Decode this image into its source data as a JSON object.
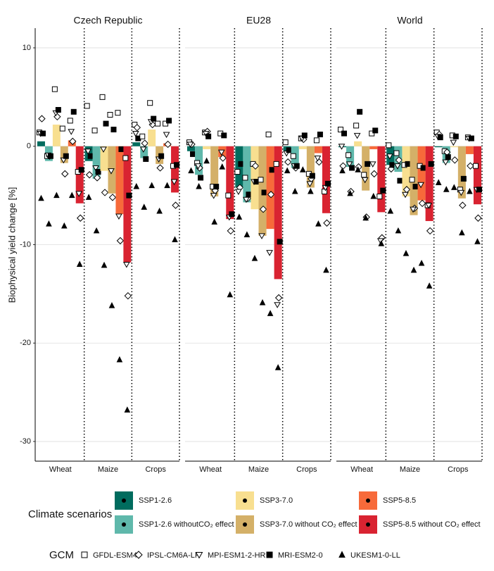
{
  "chart_data": {
    "type": "bar",
    "ylabel": "Biophysical yield change [%]",
    "ylim": [
      -32,
      12
    ],
    "yticks": [
      10,
      0,
      -10,
      -20,
      -30
    ],
    "grid": true,
    "scenario_title": "Climate scenarios",
    "scenarios": [
      {
        "name": "SSP1-2.6",
        "color": "#006c5e"
      },
      {
        "name": "SSP1-2.6 withoutCO₂ effect",
        "color": "#5fb8ab"
      },
      {
        "name": "SSP3-7.0",
        "color": "#f8df90"
      },
      {
        "name": "SSP3-7.0 without CO₂ effect",
        "color": "#d4b068"
      },
      {
        "name": "SSP5-8.5",
        "color": "#f76a3a"
      },
      {
        "name": "SSP5-8.5 without CO₂ effect",
        "color": "#d92331"
      }
    ],
    "gcm_title": "GCM",
    "gcms": [
      {
        "name": "GFDL-ESM4",
        "marker": "square-open"
      },
      {
        "name": "IPSL-CM6A-LR",
        "marker": "diamond-open"
      },
      {
        "name": "MPI-ESM1-2-HR",
        "marker": "triangle-down-open"
      },
      {
        "name": "MRI-ESM2-0",
        "marker": "square"
      },
      {
        "name": "UKESM1-0-LL",
        "marker": "triangle"
      }
    ],
    "panels": [
      {
        "title": "Czech Republic",
        "categories": [
          "Wheat",
          "Maize",
          "Crops"
        ],
        "values": [
          [
            0.5,
            -1.5,
            2.2,
            -1.7,
            0.6,
            -5.8
          ],
          [
            -1.5,
            -3.3,
            -2.5,
            -4.8,
            -6.9,
            -11.8
          ],
          [
            0.4,
            -1.2,
            1.7,
            -1.8,
            0.3,
            -4.7
          ]
        ],
        "points": [
          [
            [
              1.4,
              2.8,
              1.3,
              1.3,
              -5.3
            ],
            [
              -1.0,
              -1.0,
              -0.9,
              -1.0,
              -7.9
            ],
            [
              5.8,
              3.0,
              3.4,
              3.7,
              -5.0
            ],
            [
              1.8,
              -2.8,
              -1.4,
              -1.0,
              -8.1
            ],
            [
              2.6,
              0.5,
              1.5,
              3.5,
              -5.0
            ],
            [
              -2.6,
              -7.3,
              -4.8,
              -2.4,
              -12.0
            ]
          ],
          [
            [
              4.1,
              -2.9,
              -0.5,
              -1.0,
              -5.2
            ],
            [
              1.6,
              -3.2,
              -2.2,
              -2.6,
              -8.6
            ],
            [
              5.0,
              -4.7,
              -0.3,
              2.3,
              -12.1
            ],
            [
              3.2,
              -5.2,
              -2.5,
              1.7,
              -16.2
            ],
            [
              3.4,
              -9.6,
              -7.1,
              -0.3,
              -21.7
            ],
            [
              -1.2,
              -15.2,
              -12.0,
              -5.0,
              -26.8
            ]
          ],
          [
            [
              2.2,
              1.9,
              1.3,
              0.8,
              -4.1
            ],
            [
              1.0,
              0.3,
              -0.3,
              -1.3,
              -6.2
            ],
            [
              4.4,
              2.2,
              2.5,
              2.8,
              -4.0
            ],
            [
              2.3,
              -2.2,
              -1.3,
              -1.0,
              -6.6
            ],
            [
              2.3,
              0.2,
              1.2,
              2.6,
              -4.0
            ],
            [
              -2.0,
              -6.0,
              -3.6,
              -1.9,
              -9.5
            ]
          ]
        ]
      },
      {
        "title": "EU28",
        "categories": [
          "Wheat",
          "Maize",
          "Crops"
        ],
        "values": [
          [
            -0.5,
            -2.9,
            -0.3,
            -5.1,
            -1.1,
            -7.4
          ],
          [
            -4.2,
            -5.7,
            -6.4,
            -9.1,
            -8.4,
            -13.5
          ],
          [
            -0.5,
            -2.2,
            -0.3,
            -4.2,
            -0.7,
            -6.8
          ]
        ],
        "points": [
          [
            [
              0.4,
              0.2,
              0.2,
              -0.8,
              -2.5
            ],
            [
              -1.7,
              -2.2,
              -2.0,
              -3.2,
              -4.1
            ],
            [
              1.4,
              1.5,
              1.3,
              1.0,
              -1.5
            ],
            [
              -4.1,
              -4.5,
              -5.0,
              -4.1,
              -7.7
            ],
            [
              1.3,
              -1.2,
              -0.6,
              1.1,
              -2.1
            ],
            [
              -5.0,
              -8.6,
              -7.2,
              -6.9,
              -15.1
            ]
          ],
          [
            [
              -2.6,
              -4.2,
              -4.6,
              -1.8,
              -7.2
            ],
            [
              -3.2,
              -5.3,
              -5.4,
              -4.9,
              -9.0
            ],
            [
              -1.8,
              -2.0,
              -3.6,
              -3.6,
              -11.4
            ],
            [
              -3.4,
              -6.4,
              -9.1,
              -4.7,
              -15.9
            ],
            [
              1.2,
              -4.9,
              -10.8,
              -2.4,
              -17.0
            ],
            [
              -1.8,
              -15.4,
              -16.1,
              -9.7,
              -22.5
            ]
          ],
          [
            [
              0.4,
              -1.6,
              -0.7,
              -0.4,
              -2.5
            ],
            [
              -1.0,
              -2.2,
              -2.0,
              -2.0,
              -4.6
            ],
            [
              0.8,
              0.7,
              0.8,
              1.1,
              -2.4
            ],
            [
              -2.8,
              -3.3,
              -3.8,
              -3.0,
              -4.6
            ],
            [
              0.6,
              -1.6,
              -1.2,
              1.2,
              -7.9
            ],
            [
              -4.6,
              -7.8,
              -4.2,
              -3.8,
              -12.6
            ]
          ]
        ]
      },
      {
        "title": "World",
        "categories": [
          "Wheat",
          "Maize",
          "Crops"
        ],
        "values": [
          [
            -0.1,
            -2.1,
            0.5,
            -4.5,
            -0.3,
            -6.7
          ],
          [
            -1.9,
            -2.6,
            -5.1,
            -7.0,
            -5.5,
            -7.6
          ],
          [
            -0.1,
            -1.7,
            -0.1,
            -5.3,
            -0.8,
            -5.9
          ]
        ],
        "points": [
          [
            [
              1.7,
              -2.0,
              0.0,
              1.3,
              -2.5
            ],
            [
              -0.9,
              -4.6,
              -1.8,
              -2.2,
              -4.8
            ],
            [
              2.1,
              -2.1,
              1.1,
              3.5,
              -2.4
            ],
            [
              -2.9,
              -7.2,
              -3.4,
              -1.8,
              -7.3
            ],
            [
              1.3,
              -2.8,
              -1.8,
              1.6,
              -5.1
            ],
            [
              -5.1,
              -9.3,
              -9.6,
              -4.5,
              -9.9
            ]
          ],
          [
            [
              0.1,
              -2.3,
              -1.0,
              -1.9,
              -6.6
            ],
            [
              -0.7,
              -1.4,
              -2.0,
              -3.5,
              -8.6
            ],
            [
              -1.9,
              -4.4,
              -4.9,
              -1.8,
              -10.9
            ],
            [
              -3.4,
              -6.3,
              -6.4,
              -4.1,
              -12.6
            ],
            [
              -2.0,
              -5.8,
              -3.9,
              -2.2,
              -11.9
            ],
            [
              -6.0,
              -8.6,
              -6.0,
              -1.8,
              -14.2
            ]
          ],
          [
            [
              1.4,
              1.2,
              1.0,
              0.9,
              -3.7
            ],
            [
              -0.5,
              -0.6,
              -1.6,
              -1.1,
              -4.4
            ],
            [
              1.1,
              -1.4,
              0.4,
              1.0,
              -4.2
            ],
            [
              -4.4,
              -6.0,
              -4.7,
              -3.3,
              -8.8
            ],
            [
              0.9,
              -2.0,
              0.8,
              0.8,
              -4.6
            ],
            [
              -2.0,
              -7.3,
              -4.4,
              -4.4,
              -9.7
            ]
          ]
        ]
      }
    ]
  }
}
